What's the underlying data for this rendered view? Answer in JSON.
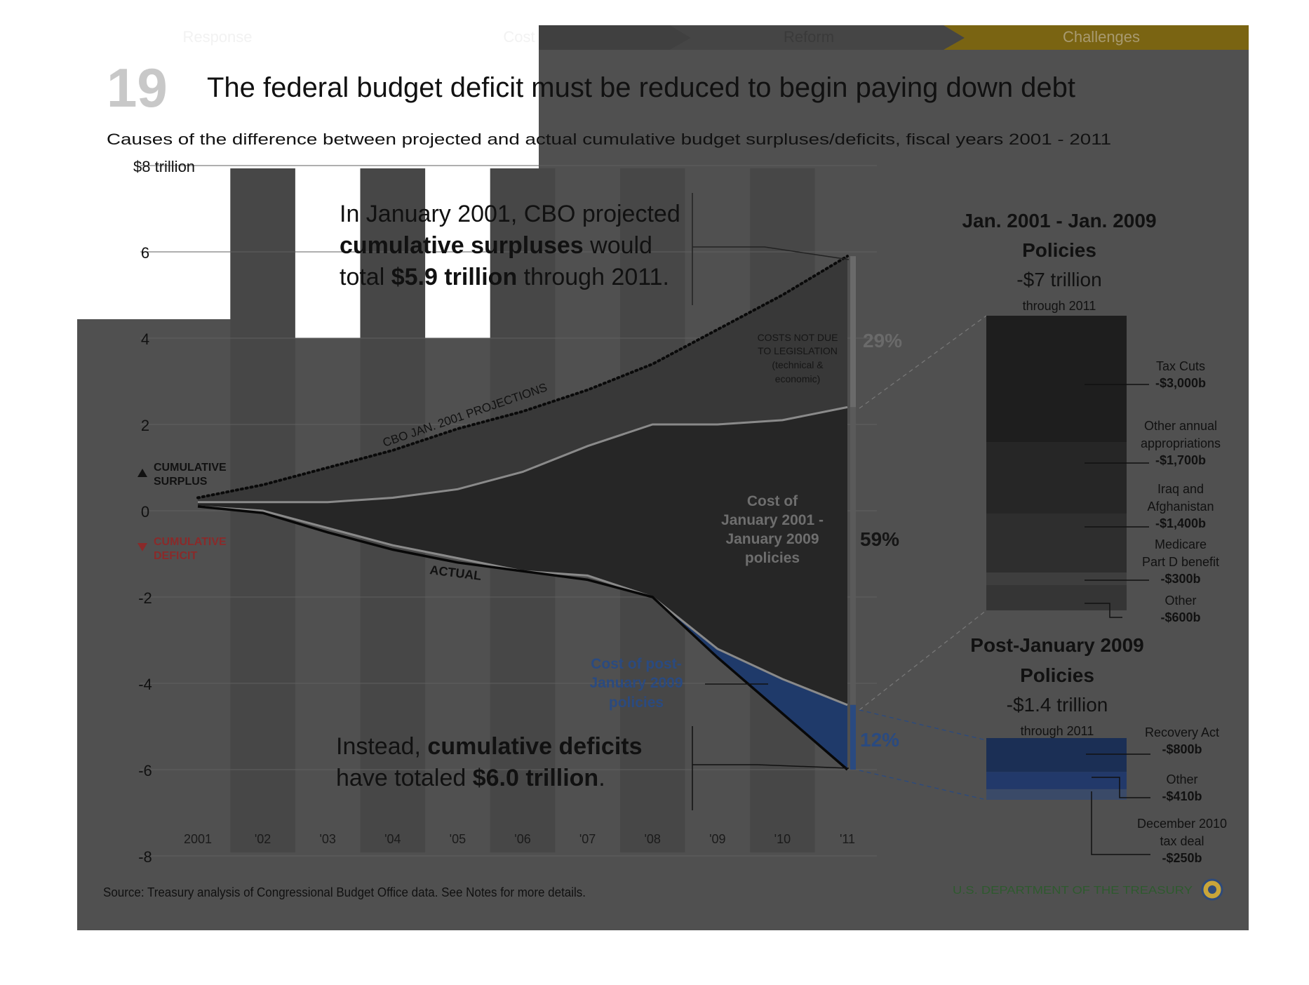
{
  "nav": {
    "tabs": [
      {
        "label": "Response",
        "active": false
      },
      {
        "label": "Cost",
        "active": false
      },
      {
        "label": "Reform",
        "active": false
      },
      {
        "label": "Challenges",
        "active": true
      }
    ]
  },
  "slide": {
    "number": "19",
    "title": "The federal budget deficit must be reduced to begin paying down debt",
    "subtitle": "Causes of the difference between projected and actual cumulative budget surpluses/deficits, fiscal years 2001 - 2011",
    "source": "Source: Treasury analysis of Congressional Budget Office data. See Notes for more details.",
    "footer_logo": "U.S. DEPARTMENT OF THE TREASURY"
  },
  "colors": {
    "panel": "#505050",
    "area_dark": "#262626",
    "area_mid": "#383838",
    "post2009": "#1f3a6a",
    "label_blue": "#2a4a80",
    "deficit_red": "#8a2a2a",
    "accent_gold": "#7a6412",
    "treasury_green": "#2e5a2e"
  },
  "chart_data": {
    "type": "area",
    "x": [
      "2001",
      "'02",
      "'03",
      "'04",
      "'05",
      "'06",
      "'07",
      "'08",
      "'09",
      "'10",
      "'11"
    ],
    "ylim": [
      -8,
      8
    ],
    "yticks": [
      "$8 trillion",
      "6",
      "4",
      "2",
      "0",
      "-2",
      "-4",
      "-6",
      "-8"
    ],
    "series": [
      {
        "name": "CBO JAN. 2001 PROJECTIONS",
        "values": [
          0.3,
          0.6,
          1.0,
          1.4,
          1.9,
          2.3,
          2.8,
          3.4,
          4.2,
          5.0,
          5.9
        ]
      },
      {
        "values": [
          0.2,
          0.2,
          0.2,
          0.3,
          0.5,
          0.9,
          1.5,
          2.0,
          2.0,
          2.1,
          2.4
        ]
      },
      {
        "values": [
          0.1,
          0.0,
          -0.4,
          -0.8,
          -1.1,
          -1.4,
          -1.5,
          -2.0,
          -3.2,
          -3.9,
          -4.5
        ]
      },
      {
        "name": "ACTUAL",
        "values": [
          0.1,
          -0.05,
          -0.5,
          -0.9,
          -1.2,
          -1.4,
          -1.6,
          -2.0,
          -3.4,
          -4.7,
          -6.0
        ]
      }
    ],
    "annotations": {
      "top_line1": "In January 2001, CBO projected",
      "top_bold1": "cumulative surpluses",
      "top_rest1": " would",
      "top_line2a": "total ",
      "top_bold2": "$5.9 trillion",
      "top_rest2": " through 2011.",
      "bottom_line1a": "Instead, ",
      "bottom_bold1": "cumulative deficits",
      "bottom_line2a": "have totaled ",
      "bottom_bold2": "$6.0 trillion",
      "bottom_rest2": ".",
      "surplus_label": [
        "CUMULATIVE",
        "SURPLUS"
      ],
      "deficit_label": [
        "CUMULATIVE",
        "DEFICIT"
      ],
      "projection_label": "CBO JAN. 2001 PROJECTIONS",
      "actual_label": "ACTUAL",
      "costs_not_due": [
        "COSTS NOT DUE",
        "TO LEGISLATION",
        "(technical &",
        "economic)"
      ],
      "cost_jan_policies": [
        "Cost of",
        "January 2001 -",
        "January 2009",
        "policies"
      ],
      "cost_post_policies": [
        "Cost of post-",
        "January 2009",
        "policies"
      ]
    },
    "bracket_shares": [
      {
        "segment": "costs not due to legislation",
        "percent": 29,
        "label": "29%"
      },
      {
        "segment": "Jan. 2001 - Jan. 2009 policies",
        "percent": 59,
        "label": "59%"
      },
      {
        "segment": "post-January 2009 policies",
        "percent": 12,
        "label": "12%"
      }
    ]
  },
  "breakdown": {
    "jan_title": [
      "Jan. 2001 - Jan. 2009",
      "Policies"
    ],
    "jan_total": "-$7 trillion",
    "jan_through": "through 2011",
    "jan_items": [
      {
        "label": [
          "Tax Cuts"
        ],
        "value_text": "-$3,000b",
        "value": -3000
      },
      {
        "label": [
          "Other annual",
          "appropriations"
        ],
        "value_text": "-$1,700b",
        "value": -1700
      },
      {
        "label": [
          "Iraq and",
          "Afghanistan"
        ],
        "value_text": "-$1,400b",
        "value": -1400
      },
      {
        "label": [
          "Medicare",
          "Part D benefit"
        ],
        "value_text": "-$300b",
        "value": -300
      },
      {
        "label": [
          "Other"
        ],
        "value_text": "-$600b",
        "value": -600
      }
    ],
    "post_title": [
      "Post-January 2009",
      "Policies"
    ],
    "post_total": "-$1.4 trillion",
    "post_through": "through 2011",
    "post_items": [
      {
        "label": [
          "Recovery Act"
        ],
        "value_text": "-$800b",
        "value": -800
      },
      {
        "label": [
          "Other"
        ],
        "value_text": "-$410b",
        "value": -410
      },
      {
        "label": [
          "December 2010",
          "tax deal"
        ],
        "value_text": "-$250b",
        "value": -250
      }
    ]
  }
}
